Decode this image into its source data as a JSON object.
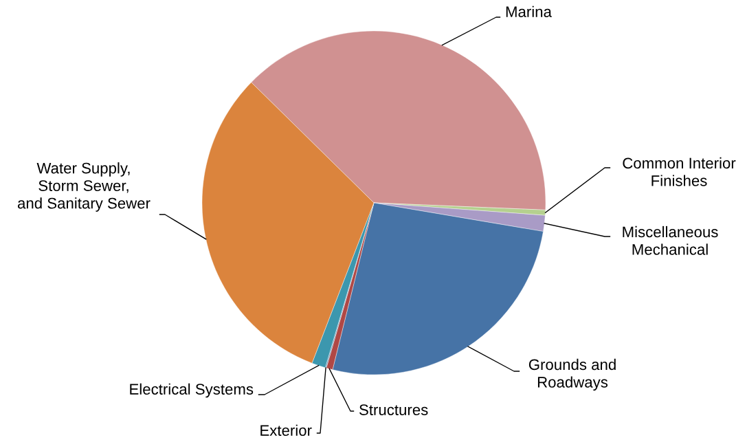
{
  "chart_data": {
    "type": "pie",
    "categories": [
      "Marina",
      "Common Interior\nFinishes",
      "Miscellaneous\nMechanical",
      "Grounds and\nRoadways",
      "Structures",
      "Exterior",
      "Electrical Systems",
      "Water Supply,\nStorm Sewer,\nand Sanitary Sewer"
    ],
    "values": [
      38.3,
      0.5,
      1.5,
      26.2,
      0.6,
      0.1,
      1.3,
      31.5
    ],
    "colors": [
      "#d09191",
      "#b5d08f",
      "#a99bc6",
      "#4673a6",
      "#b04845",
      "#6a8fb0",
      "#3c97ae",
      "#db843d"
    ]
  }
}
